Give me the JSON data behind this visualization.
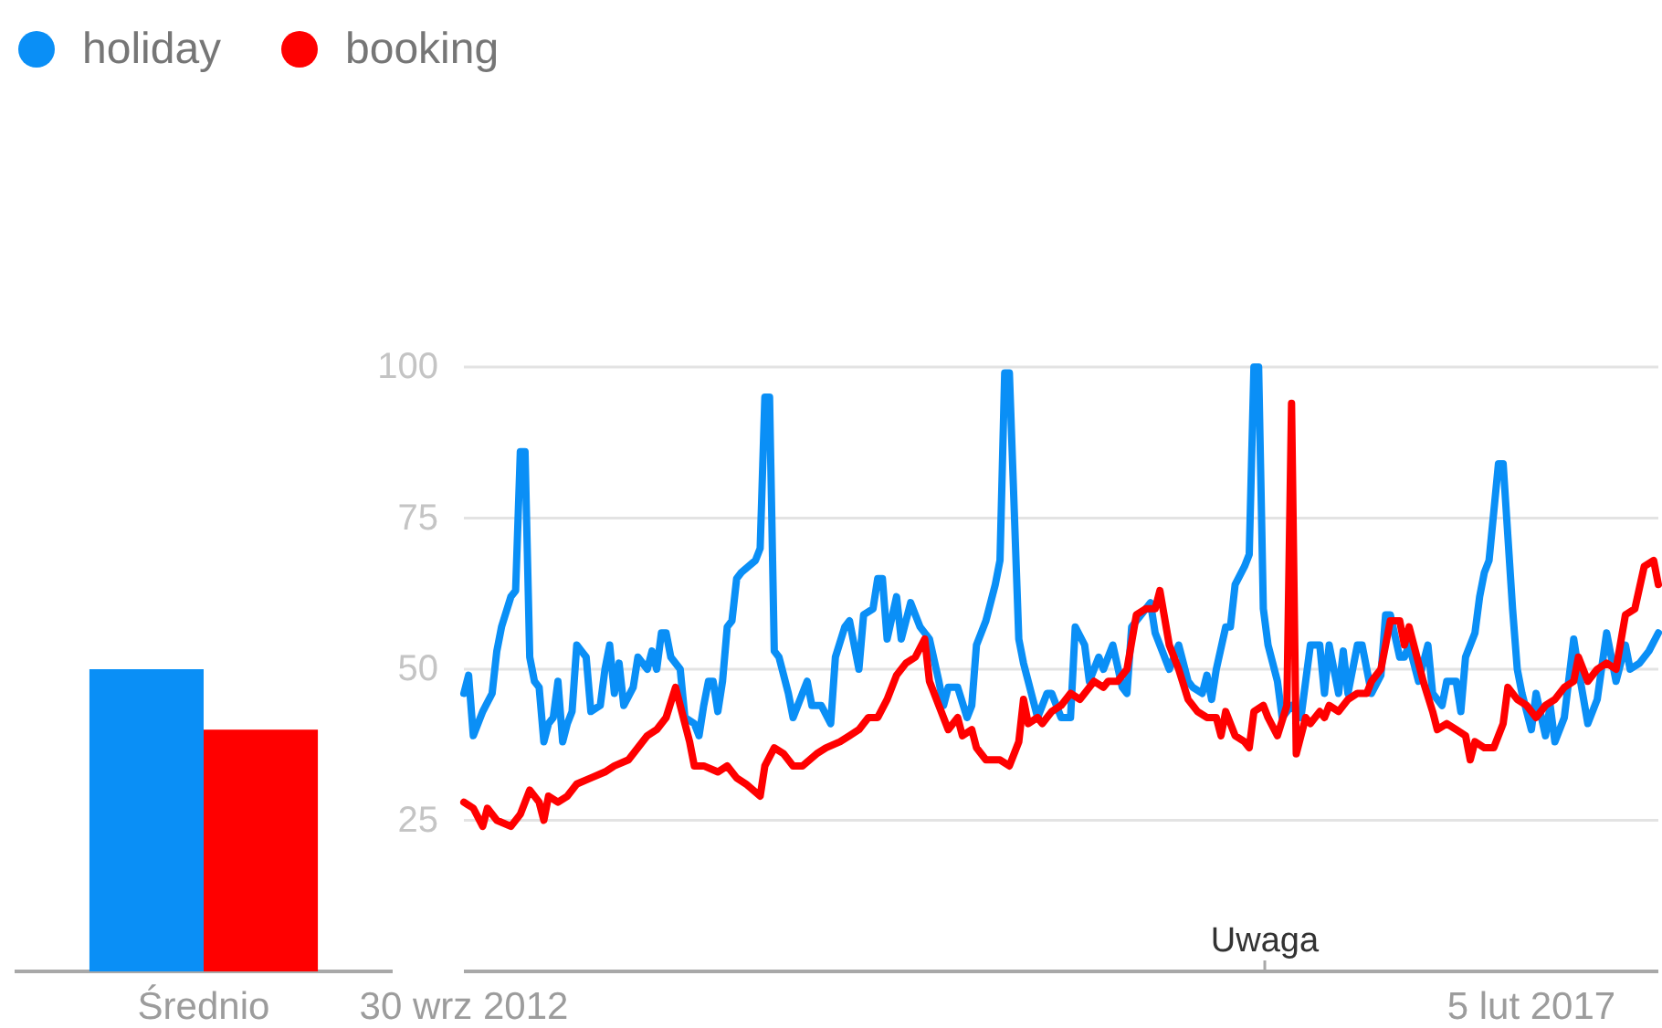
{
  "chart_data": [
    {
      "type": "bar",
      "categories": [
        "Średnio"
      ],
      "series": [
        {
          "color": "#0a8ff6",
          "values": [
            50
          ]
        },
        {
          "color": "#ff0000",
          "values": [
            40
          ]
        }
      ],
      "ylim": [
        0,
        100
      ],
      "tick_labels": "x"
    },
    {
      "type": "line",
      "xlim": [
        "2012-09-30",
        "2017-08-13"
      ],
      "xticks": [
        {
          "value": "2012-09-30",
          "label": "30 wrz 2012"
        },
        {
          "value": "2017-02-05",
          "label": "5 lut 2017"
        }
      ],
      "ylim": [
        0,
        100
      ],
      "yticks": [
        25,
        50,
        75,
        100
      ],
      "grid": "y",
      "legend": "top left",
      "series": [
        {
          "name": "holiday",
          "color": "#0a8ff6",
          "x": [
            "2012-09-30",
            "2012-10-07",
            "2012-10-14",
            "2012-10-28",
            "2012-11-11",
            "2012-11-18",
            "2012-11-25",
            "2012-12-09",
            "2012-12-16",
            "2012-12-23",
            "2012-12-30",
            "2013-01-06",
            "2013-01-13",
            "2013-01-20",
            "2013-01-27",
            "2013-02-03",
            "2013-02-10",
            "2013-02-17",
            "2013-02-24",
            "2013-03-03",
            "2013-03-10",
            "2013-03-17",
            "2013-03-24",
            "2013-03-31",
            "2013-04-07",
            "2013-04-21",
            "2013-04-28",
            "2013-05-05",
            "2013-05-12",
            "2013-05-19",
            "2013-05-26",
            "2013-06-09",
            "2013-06-16",
            "2013-06-30",
            "2013-07-07",
            "2013-07-14",
            "2013-07-21",
            "2013-07-28",
            "2013-08-04",
            "2013-08-18",
            "2013-08-25",
            "2013-09-08",
            "2013-09-15",
            "2013-09-22",
            "2013-09-29",
            "2013-10-06",
            "2013-10-13",
            "2013-10-20",
            "2013-10-27",
            "2013-11-03",
            "2013-11-10",
            "2013-11-17",
            "2013-12-08",
            "2013-12-15",
            "2013-12-22",
            "2013-12-29",
            "2014-01-05",
            "2014-01-12",
            "2014-01-26",
            "2014-02-02",
            "2014-02-16",
            "2014-02-23",
            "2014-03-02",
            "2014-03-16",
            "2014-03-30",
            "2014-04-06",
            "2014-04-20",
            "2014-04-27",
            "2014-05-11",
            "2014-05-18",
            "2014-06-01",
            "2014-06-08",
            "2014-06-15",
            "2014-06-22",
            "2014-07-06",
            "2014-07-13",
            "2014-07-27",
            "2014-08-10",
            "2014-08-24",
            "2014-09-07",
            "2014-09-14",
            "2014-09-21",
            "2014-10-05",
            "2014-10-19",
            "2014-10-26",
            "2014-11-02",
            "2014-11-16",
            "2014-11-30",
            "2014-12-07",
            "2014-12-14",
            "2014-12-21",
            "2015-01-04",
            "2015-01-11",
            "2015-01-18",
            "2015-02-01",
            "2015-02-15",
            "2015-02-22",
            "2015-03-08",
            "2015-03-22",
            "2015-03-29",
            "2015-04-12",
            "2015-04-19",
            "2015-05-03",
            "2015-05-10",
            "2015-05-24",
            "2015-06-07",
            "2015-06-14",
            "2015-06-21",
            "2015-07-05",
            "2015-07-19",
            "2015-07-26",
            "2015-08-02",
            "2015-08-16",
            "2015-08-30",
            "2015-09-13",
            "2015-09-20",
            "2015-10-04",
            "2015-10-11",
            "2015-10-18",
            "2015-10-25",
            "2015-11-08",
            "2015-11-15",
            "2015-11-22",
            "2015-12-06",
            "2015-12-13",
            "2015-12-20",
            "2015-12-27",
            "2016-01-03",
            "2016-01-10",
            "2016-01-24",
            "2016-01-31",
            "2016-02-14",
            "2016-02-28",
            "2016-03-13",
            "2016-03-27",
            "2016-04-03",
            "2016-04-10",
            "2016-04-24",
            "2016-05-01",
            "2016-05-08",
            "2016-05-22",
            "2016-05-29",
            "2016-06-12",
            "2016-06-26",
            "2016-07-03",
            "2016-07-10",
            "2016-07-24",
            "2016-07-31",
            "2016-08-07",
            "2016-08-21",
            "2016-09-04",
            "2016-09-11",
            "2016-09-25",
            "2016-10-02",
            "2016-10-16",
            "2016-10-23",
            "2016-10-30",
            "2016-11-13",
            "2016-11-20",
            "2016-11-27",
            "2016-12-04",
            "2016-12-18",
            "2016-12-25",
            "2017-01-08",
            "2017-01-15",
            "2017-01-22",
            "2017-02-05",
            "2017-02-12",
            "2017-02-26",
            "2017-03-05",
            "2017-03-12",
            "2017-03-26",
            "2017-04-09",
            "2017-04-16",
            "2017-04-30",
            "2017-05-14",
            "2017-05-28",
            "2017-06-11",
            "2017-06-25",
            "2017-07-02",
            "2017-07-16",
            "2017-07-30",
            "2017-08-13"
          ],
          "values": [
            46,
            49,
            39,
            43,
            46,
            53,
            57,
            62,
            63,
            86,
            86,
            52,
            48,
            47,
            38,
            41,
            42,
            48,
            38,
            41,
            43,
            54,
            53,
            52,
            43,
            44,
            50,
            54,
            46,
            51,
            44,
            47,
            52,
            50,
            53,
            50,
            56,
            56,
            52,
            50,
            42,
            41,
            39,
            44,
            48,
            48,
            43,
            48,
            57,
            58,
            65,
            66,
            68,
            70,
            95,
            95,
            53,
            52,
            46,
            42,
            46,
            48,
            44,
            44,
            41,
            52,
            57,
            58,
            50,
            59,
            60,
            65,
            65,
            55,
            62,
            55,
            61,
            57,
            55,
            48,
            44,
            47,
            47,
            42,
            44,
            54,
            58,
            64,
            68,
            99,
            99,
            55,
            51,
            48,
            42,
            46,
            46,
            42,
            42,
            57,
            54,
            48,
            52,
            50,
            54,
            47,
            46,
            57,
            59,
            61,
            56,
            54,
            50,
            54,
            48,
            47,
            46,
            49,
            45,
            50,
            57,
            57,
            64,
            67,
            69,
            100,
            100,
            60,
            54,
            48,
            42,
            44,
            42,
            54,
            54,
            46,
            54,
            46,
            53,
            46,
            54,
            54,
            46,
            49,
            59,
            59,
            52,
            52,
            54,
            48,
            54,
            46,
            44,
            48,
            48,
            43,
            52,
            56,
            62,
            66,
            68,
            84,
            84,
            60,
            50,
            46,
            40,
            46,
            39,
            44,
            38,
            42,
            55,
            50,
            41,
            45,
            56,
            48,
            54,
            50,
            51,
            53,
            56
          ]
        },
        {
          "name": "booking",
          "color": "#ff0000",
          "x": [
            "2012-09-30",
            "2012-10-14",
            "2012-10-28",
            "2012-11-04",
            "2012-11-18",
            "2012-12-09",
            "2012-12-23",
            "2013-01-06",
            "2013-01-20",
            "2013-01-27",
            "2013-02-03",
            "2013-02-17",
            "2013-03-03",
            "2013-03-17",
            "2013-04-07",
            "2013-04-28",
            "2013-05-12",
            "2013-06-02",
            "2013-06-16",
            "2013-06-30",
            "2013-07-14",
            "2013-07-28",
            "2013-08-11",
            "2013-08-18",
            "2013-09-01",
            "2013-09-08",
            "2013-09-22",
            "2013-10-13",
            "2013-10-27",
            "2013-11-10",
            "2013-11-24",
            "2013-12-15",
            "2013-12-22",
            "2014-01-05",
            "2014-01-19",
            "2014-02-02",
            "2014-02-16",
            "2014-03-09",
            "2014-03-23",
            "2014-04-13",
            "2014-04-27",
            "2014-05-11",
            "2014-05-25",
            "2014-06-08",
            "2014-06-22",
            "2014-07-06",
            "2014-07-20",
            "2014-08-03",
            "2014-08-17",
            "2014-08-24",
            "2014-09-07",
            "2014-09-21",
            "2014-10-05",
            "2014-10-12",
            "2014-10-26",
            "2014-11-02",
            "2014-11-16",
            "2014-12-07",
            "2014-12-21",
            "2015-01-04",
            "2015-01-11",
            "2015-01-18",
            "2015-02-01",
            "2015-02-08",
            "2015-02-22",
            "2015-03-08",
            "2015-03-22",
            "2015-04-05",
            "2015-04-19",
            "2015-04-26",
            "2015-05-10",
            "2015-05-17",
            "2015-05-31",
            "2015-06-14",
            "2015-06-28",
            "2015-07-12",
            "2015-07-26",
            "2015-08-02",
            "2015-08-16",
            "2015-08-30",
            "2015-09-13",
            "2015-09-27",
            "2015-10-11",
            "2015-10-25",
            "2015-11-01",
            "2015-11-08",
            "2015-11-22",
            "2015-12-06",
            "2015-12-13",
            "2015-12-20",
            "2016-01-03",
            "2016-01-10",
            "2016-01-24",
            "2016-02-07",
            "2016-02-14",
            "2016-02-21",
            "2016-03-06",
            "2016-03-13",
            "2016-03-27",
            "2016-04-03",
            "2016-04-10",
            "2016-04-24",
            "2016-05-08",
            "2016-05-22",
            "2016-06-05",
            "2016-06-12",
            "2016-06-26",
            "2016-07-10",
            "2016-07-24",
            "2016-07-31",
            "2016-08-07",
            "2016-08-14",
            "2016-08-28",
            "2016-09-11",
            "2016-09-18",
            "2016-10-02",
            "2016-10-16",
            "2016-10-30",
            "2016-11-06",
            "2016-11-13",
            "2016-11-27",
            "2016-12-11",
            "2016-12-25",
            "2017-01-01",
            "2017-01-15",
            "2017-01-29",
            "2017-02-12",
            "2017-02-26",
            "2017-03-12",
            "2017-03-26",
            "2017-04-09",
            "2017-04-16",
            "2017-04-30",
            "2017-05-14",
            "2017-05-28",
            "2017-06-11",
            "2017-06-25",
            "2017-07-09",
            "2017-07-23",
            "2017-08-06",
            "2017-08-13"
          ],
          "values": [
            28,
            27,
            24,
            27,
            25,
            24,
            26,
            30,
            28,
            25,
            29,
            28,
            29,
            31,
            32,
            33,
            34,
            35,
            37,
            39,
            40,
            42,
            47,
            44,
            38,
            34,
            34,
            33,
            34,
            32,
            31,
            29,
            34,
            37,
            36,
            34,
            34,
            36,
            37,
            38,
            39,
            40,
            42,
            42,
            45,
            49,
            51,
            52,
            55,
            48,
            44,
            40,
            42,
            39,
            40,
            37,
            35,
            35,
            34,
            38,
            45,
            41,
            42,
            41,
            43,
            44,
            46,
            45,
            47,
            48,
            47,
            48,
            48,
            50,
            59,
            60,
            60,
            63,
            54,
            50,
            45,
            43,
            42,
            42,
            39,
            43,
            39,
            38,
            37,
            43,
            44,
            42,
            39,
            44,
            94,
            36,
            42,
            41,
            43,
            42,
            44,
            43,
            45,
            46,
            46,
            48,
            50,
            58,
            58,
            54,
            57,
            54,
            48,
            43,
            40,
            41,
            40,
            39,
            35,
            38,
            37,
            37,
            41,
            47,
            45,
            44,
            42,
            44,
            45,
            47,
            48,
            52,
            48,
            50,
            51,
            50,
            59,
            60,
            67,
            68,
            64
          ]
        }
      ],
      "annotations": [
        "Uwaga"
      ]
    }
  ]
}
